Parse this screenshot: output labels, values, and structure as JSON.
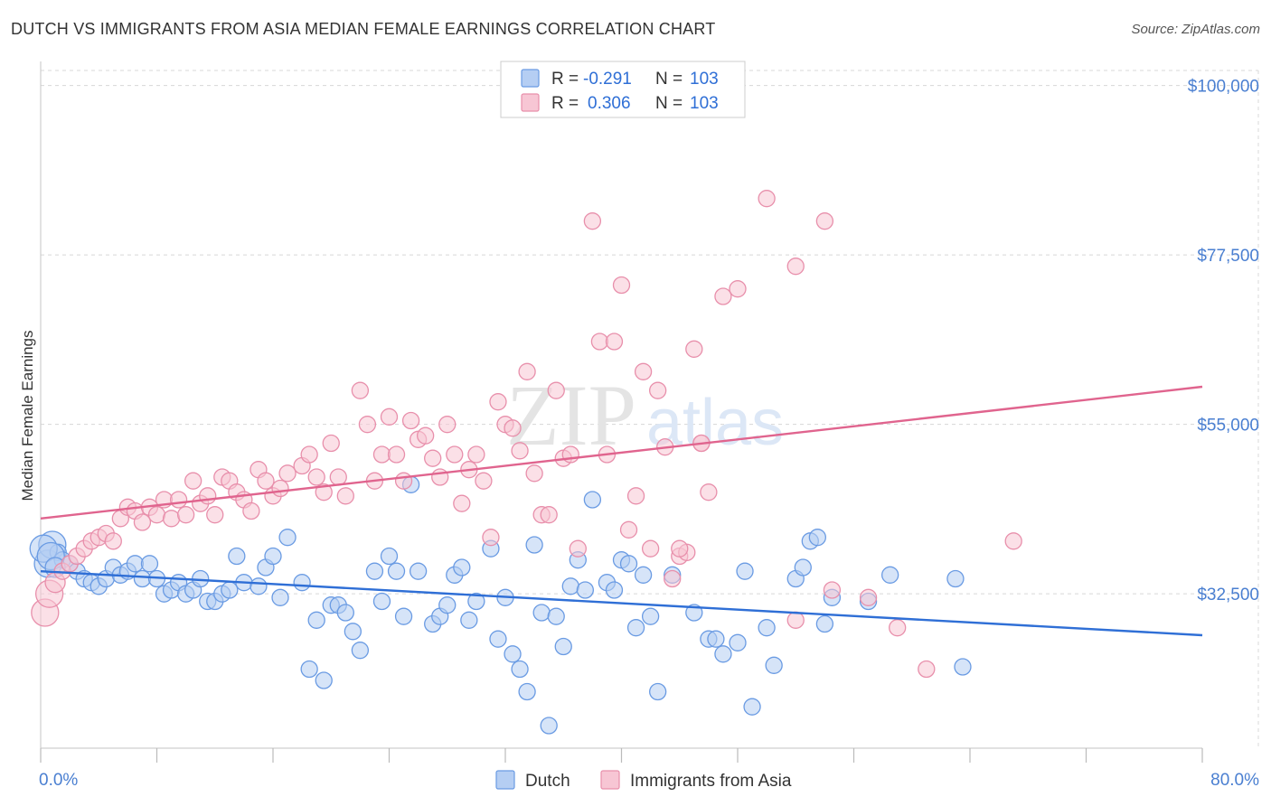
{
  "header": {
    "title": "DUTCH VS IMMIGRANTS FROM ASIA MEDIAN FEMALE EARNINGS CORRELATION CHART",
    "source": "Source: ZipAtlas.com"
  },
  "watermark": {
    "zip": "ZIP",
    "atlas": "atlas"
  },
  "colors": {
    "dutch": "#6a9be3",
    "dutch_fill": "#b5cef3",
    "dutch_line": "#2f6fd6",
    "asia": "#e88fab",
    "asia_fill": "#f7c6d4",
    "asia_line": "#e0648e",
    "grid": "#d8d8d8",
    "tick_text": "#4a7fd1"
  },
  "legend_top": {
    "rows": [
      {
        "r_label": "R = ",
        "r_value": "-0.291",
        "n_label": "N = ",
        "n_value": "103"
      },
      {
        "r_label": "R = ",
        "r_value": "0.306",
        "n_label": "N = ",
        "n_value": "103"
      }
    ]
  },
  "legend_bottom": {
    "dutch": "Dutch",
    "asia": "Immigrants from Asia"
  },
  "chart_data": {
    "type": "scatter",
    "title": "DUTCH VS IMMIGRANTS FROM ASIA MEDIAN FEMALE EARNINGS CORRELATION CHART",
    "xlabel": "",
    "ylabel": "Median Female Earnings",
    "xlim": [
      0,
      80
    ],
    "ylim": [
      12000,
      102000
    ],
    "x_tick_labels": [
      "0.0%",
      "80.0%"
    ],
    "y_ticks": [
      32500,
      55000,
      77500,
      100000
    ],
    "y_tick_labels": [
      "$32,500",
      "$55,000",
      "$77,500",
      "$100,000"
    ],
    "grid": true,
    "legend_position": "top-center",
    "series": [
      {
        "name": "Dutch",
        "r": -0.291,
        "n": 103,
        "trend": {
          "x": [
            0,
            80
          ],
          "y": [
            35500,
            27000
          ]
        },
        "points": [
          [
            0.5,
            36500
          ],
          [
            0.8,
            39000
          ],
          [
            1.2,
            38000
          ],
          [
            1.5,
            37000
          ],
          [
            2,
            36500
          ],
          [
            2.5,
            35500
          ],
          [
            3,
            34500
          ],
          [
            3.5,
            34000
          ],
          [
            4,
            33500
          ],
          [
            4.5,
            34500
          ],
          [
            5,
            36000
          ],
          [
            5.5,
            35000
          ],
          [
            6,
            35500
          ],
          [
            6.5,
            36500
          ],
          [
            7,
            34500
          ],
          [
            7.5,
            36500
          ],
          [
            8,
            34500
          ],
          [
            8.5,
            32500
          ],
          [
            9,
            33000
          ],
          [
            9.5,
            34000
          ],
          [
            10,
            32500
          ],
          [
            10.5,
            33000
          ],
          [
            11,
            34500
          ],
          [
            11.5,
            31500
          ],
          [
            12,
            31500
          ],
          [
            12.5,
            32500
          ],
          [
            13,
            33000
          ],
          [
            13.5,
            37500
          ],
          [
            14,
            34000
          ],
          [
            15,
            33500
          ],
          [
            15.5,
            36000
          ],
          [
            16,
            37500
          ],
          [
            16.5,
            32000
          ],
          [
            17,
            40000
          ],
          [
            18,
            34000
          ],
          [
            18.5,
            22500
          ],
          [
            19,
            29000
          ],
          [
            19.5,
            21000
          ],
          [
            20,
            31000
          ],
          [
            20.5,
            31000
          ],
          [
            21,
            30000
          ],
          [
            21.5,
            27500
          ],
          [
            22,
            25000
          ],
          [
            23,
            35500
          ],
          [
            23.5,
            31500
          ],
          [
            24,
            37500
          ],
          [
            24.5,
            35500
          ],
          [
            25,
            29500
          ],
          [
            25.5,
            47000
          ],
          [
            26,
            35500
          ],
          [
            27,
            28500
          ],
          [
            27.5,
            29500
          ],
          [
            28,
            31000
          ],
          [
            28.5,
            35000
          ],
          [
            29,
            36000
          ],
          [
            29.5,
            29000
          ],
          [
            30,
            31500
          ],
          [
            31,
            38500
          ],
          [
            31.5,
            26500
          ],
          [
            32,
            32000
          ],
          [
            32.5,
            24500
          ],
          [
            33,
            22500
          ],
          [
            33.5,
            19500
          ],
          [
            34,
            39000
          ],
          [
            34.5,
            30000
          ],
          [
            35,
            15000
          ],
          [
            35.5,
            29500
          ],
          [
            36,
            25500
          ],
          [
            36.5,
            33500
          ],
          [
            37,
            37000
          ],
          [
            37.5,
            33000
          ],
          [
            38,
            45000
          ],
          [
            39,
            34000
          ],
          [
            39.5,
            33000
          ],
          [
            40,
            37000
          ],
          [
            40.5,
            36500
          ],
          [
            41,
            28000
          ],
          [
            41.5,
            35000
          ],
          [
            42,
            29500
          ],
          [
            42.5,
            19500
          ],
          [
            43.5,
            35000
          ],
          [
            45,
            30000
          ],
          [
            46,
            26500
          ],
          [
            46.5,
            26500
          ],
          [
            47,
            24500
          ],
          [
            48,
            26000
          ],
          [
            48.5,
            35500
          ],
          [
            49,
            17500
          ],
          [
            50,
            28000
          ],
          [
            50.5,
            23000
          ],
          [
            52,
            34500
          ],
          [
            52.5,
            36000
          ],
          [
            53,
            39500
          ],
          [
            53.5,
            40000
          ],
          [
            54,
            28500
          ],
          [
            54.5,
            32000
          ],
          [
            57,
            31500
          ],
          [
            58.5,
            35000
          ],
          [
            63,
            34500
          ],
          [
            63.5,
            22800
          ],
          [
            0.2,
            38500
          ],
          [
            0.7,
            37500
          ],
          [
            1,
            36000
          ]
        ]
      },
      {
        "name": "Immigrants from Asia",
        "r": 0.306,
        "n": 103,
        "trend": {
          "x": [
            0,
            80
          ],
          "y": [
            42500,
            60000
          ]
        },
        "points": [
          [
            0.3,
            30000
          ],
          [
            0.6,
            32500
          ],
          [
            1,
            34000
          ],
          [
            1.5,
            35500
          ],
          [
            2,
            36500
          ],
          [
            2.5,
            37500
          ],
          [
            3,
            38500
          ],
          [
            3.5,
            39500
          ],
          [
            4,
            40000
          ],
          [
            4.5,
            40500
          ],
          [
            5,
            39500
          ],
          [
            5.5,
            42500
          ],
          [
            6,
            44000
          ],
          [
            6.5,
            43500
          ],
          [
            7,
            42000
          ],
          [
            7.5,
            44000
          ],
          [
            8,
            43000
          ],
          [
            8.5,
            45000
          ],
          [
            9,
            42500
          ],
          [
            9.5,
            45000
          ],
          [
            10,
            43000
          ],
          [
            10.5,
            47500
          ],
          [
            11,
            44500
          ],
          [
            11.5,
            45500
          ],
          [
            12,
            43000
          ],
          [
            12.5,
            48000
          ],
          [
            13,
            47500
          ],
          [
            13.5,
            46000
          ],
          [
            14,
            45000
          ],
          [
            14.5,
            43500
          ],
          [
            15,
            49000
          ],
          [
            15.5,
            47500
          ],
          [
            16,
            45500
          ],
          [
            16.5,
            46500
          ],
          [
            17,
            48500
          ],
          [
            18,
            49500
          ],
          [
            18.5,
            51000
          ],
          [
            19,
            48000
          ],
          [
            19.5,
            46000
          ],
          [
            20,
            52500
          ],
          [
            20.5,
            48000
          ],
          [
            21,
            45500
          ],
          [
            22,
            59500
          ],
          [
            22.5,
            55000
          ],
          [
            23,
            47500
          ],
          [
            23.5,
            51000
          ],
          [
            24,
            56000
          ],
          [
            24.5,
            51000
          ],
          [
            25,
            47500
          ],
          [
            25.5,
            55500
          ],
          [
            26,
            53000
          ],
          [
            26.5,
            53500
          ],
          [
            27,
            50500
          ],
          [
            27.5,
            48000
          ],
          [
            28,
            55000
          ],
          [
            28.5,
            51000
          ],
          [
            29,
            44500
          ],
          [
            29.5,
            49000
          ],
          [
            30,
            51000
          ],
          [
            30.5,
            47500
          ],
          [
            31,
            40000
          ],
          [
            31.5,
            58000
          ],
          [
            32,
            55000
          ],
          [
            32.5,
            54500
          ],
          [
            33,
            51500
          ],
          [
            33.5,
            62000
          ],
          [
            34,
            48500
          ],
          [
            34.5,
            43000
          ],
          [
            35,
            43000
          ],
          [
            35.5,
            59500
          ],
          [
            36,
            50500
          ],
          [
            36.5,
            51000
          ],
          [
            37,
            38500
          ],
          [
            38,
            82000
          ],
          [
            38.5,
            66000
          ],
          [
            39,
            51000
          ],
          [
            39.5,
            66000
          ],
          [
            40,
            73500
          ],
          [
            40.5,
            41000
          ],
          [
            41,
            45500
          ],
          [
            41.5,
            62000
          ],
          [
            42,
            38500
          ],
          [
            42.5,
            59500
          ],
          [
            43,
            52000
          ],
          [
            43.5,
            34500
          ],
          [
            44,
            37500
          ],
          [
            44.5,
            38000
          ],
          [
            45,
            65000
          ],
          [
            45.5,
            52500
          ],
          [
            46,
            46000
          ],
          [
            47,
            72000
          ],
          [
            48,
            73000
          ],
          [
            50,
            85000
          ],
          [
            52,
            76000
          ],
          [
            52,
            29000
          ],
          [
            54,
            82000
          ],
          [
            54.5,
            33000
          ],
          [
            57,
            32000
          ],
          [
            59,
            28000
          ],
          [
            61,
            22500
          ],
          [
            67,
            39500
          ],
          [
            44,
            38500
          ],
          [
            45.5,
            52500
          ]
        ]
      }
    ]
  }
}
